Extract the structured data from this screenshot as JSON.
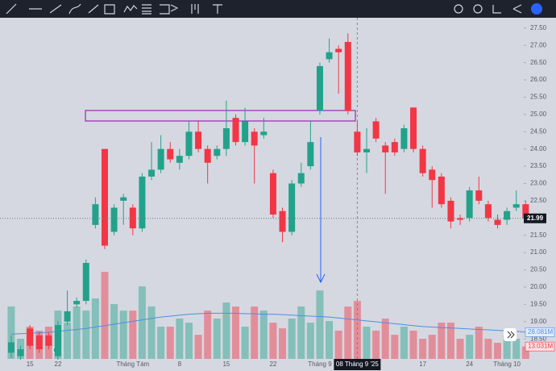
{
  "chart_data": {
    "type": "candlestick",
    "categories": [
      null,
      null,
      "15",
      null,
      null,
      "22",
      null,
      null,
      null,
      null,
      null,
      null,
      null,
      "Tháng Tám",
      null,
      null,
      null,
      null,
      "8",
      null,
      null,
      null,
      null,
      "15",
      null,
      null,
      null,
      null,
      "22",
      null,
      null,
      null,
      null,
      "Tháng 9",
      null,
      null,
      null,
      null,
      null,
      null,
      null,
      null,
      null,
      null,
      "17",
      null,
      null,
      null,
      null,
      "24",
      null,
      null,
      null,
      "Tháng 10",
      null,
      null
    ],
    "open": [
      18.1,
      18.0,
      18.8,
      18.6,
      18.6,
      18.0,
      19.0,
      19.5,
      19.6,
      21.8,
      24.0,
      21.6,
      22.5,
      22.3,
      21.7,
      23.2,
      23.4,
      24.0,
      23.6,
      23.8,
      24.5,
      24.0,
      23.8,
      24.0,
      24.9,
      24.2,
      24.5,
      24.4,
      23.3,
      22.2,
      21.6,
      23.0,
      23.5,
      25.1,
      26.6,
      26.9,
      27.1,
      24.5,
      23.9,
      24.8,
      24.1,
      24.2,
      24.0,
      25.2,
      24.0,
      23.4,
      23.2,
      22.5,
      22.0,
      22.0,
      22.8,
      22.4,
      21.95,
      21.95,
      22.3,
      22.4
    ],
    "high": [
      18.6,
      18.3,
      18.9,
      18.7,
      18.7,
      19.0,
      19.9,
      19.7,
      20.8,
      22.6,
      24.0,
      22.4,
      22.7,
      22.4,
      23.3,
      24.2,
      24.4,
      24.2,
      24.0,
      24.8,
      24.8,
      24.1,
      24.1,
      25.4,
      25.0,
      25.2,
      24.6,
      24.9,
      23.4,
      22.3,
      23.1,
      23.6,
      24.8,
      26.5,
      27.2,
      27.0,
      27.35,
      24.8,
      24.6,
      24.9,
      24.2,
      24.3,
      24.7,
      25.2,
      24.1,
      23.5,
      23.3,
      22.6,
      22.1,
      22.9,
      23.2,
      22.5,
      22.1,
      22.3,
      22.8,
      22.5
    ],
    "low": [
      17.95,
      17.9,
      18.2,
      18.1,
      18.2,
      17.9,
      18.9,
      19.4,
      19.5,
      21.7,
      21.1,
      21.5,
      21.8,
      21.5,
      21.6,
      23.1,
      23.3,
      23.6,
      23.4,
      23.7,
      23.9,
      23.0,
      23.7,
      23.8,
      24.1,
      24.1,
      23.0,
      24.3,
      22.0,
      21.3,
      21.5,
      22.9,
      23.4,
      25.0,
      26.5,
      25.6,
      25.0,
      23.8,
      23.3,
      24.2,
      22.7,
      23.8,
      23.9,
      23.9,
      23.2,
      22.3,
      22.3,
      21.7,
      21.8,
      21.9,
      22.4,
      21.9,
      21.7,
      21.8,
      22.2,
      21.9
    ],
    "close": [
      18.4,
      18.2,
      18.3,
      18.2,
      18.3,
      18.9,
      19.3,
      19.6,
      20.7,
      22.4,
      21.2,
      22.3,
      22.6,
      21.7,
      23.2,
      23.4,
      24.0,
      23.7,
      23.8,
      24.5,
      24.0,
      23.6,
      24.0,
      24.6,
      24.2,
      24.8,
      24.1,
      24.5,
      22.1,
      21.6,
      23.0,
      23.3,
      24.2,
      26.4,
      26.8,
      26.8,
      25.1,
      23.9,
      24.0,
      24.3,
      23.9,
      23.9,
      24.6,
      24.0,
      23.3,
      23.1,
      22.4,
      21.9,
      21.95,
      22.8,
      22.5,
      22.0,
      21.8,
      22.2,
      22.4,
      21.99
    ],
    "volume": [
      55.1,
      21.2,
      33.9,
      29.7,
      33.9,
      50.8,
      38.1,
      55.1,
      50.8,
      63.6,
      91.5,
      57.6,
      50.8,
      50.8,
      76.3,
      55.1,
      33.9,
      33.9,
      42.4,
      38.1,
      25.4,
      50.8,
      42.4,
      59.3,
      55.1,
      33.9,
      55.1,
      50.8,
      38.1,
      32.2,
      42.4,
      55.1,
      38.1,
      72.0,
      39.8,
      29.7,
      55.1,
      61.0,
      33.9,
      29.7,
      42.4,
      25.4,
      33.9,
      29.7,
      21.2,
      25.4,
      38.1,
      38.1,
      21.2,
      25.4,
      33.9,
      21.2,
      16.9,
      25.4,
      21.2,
      13.031
    ],
    "volume_ma": [
      26,
      26.5,
      27,
      27.5,
      28,
      29,
      30,
      31,
      32,
      33.5,
      35,
      36.5,
      38,
      39.5,
      41,
      42.5,
      44,
      45,
      46,
      47,
      47.5,
      48,
      48,
      48,
      48,
      47.5,
      47.5,
      47,
      47,
      46.5,
      46,
      45.5,
      45,
      44.5,
      44,
      43,
      42,
      41,
      40,
      39,
      38,
      37,
      36,
      35,
      34,
      33.5,
      33,
      32.5,
      32,
      31.5,
      31,
      30.5,
      30,
      29.5,
      29,
      28.081
    ],
    "last_price_label": "21.99",
    "last_volume_label": "13.031M",
    "last_volume_ma_label": "28.081M",
    "crosshair_label": "08 Tháng 9 '25",
    "up_color": "#22a28a",
    "down_color": "#f23645",
    "volume_ma_color": "#4f8fe0",
    "ylim": [
      17.92,
      27.8
    ],
    "yticks": [
      {
        "value": 27.5,
        "label": "27.50"
      },
      {
        "value": 27,
        "label": "27.00"
      },
      {
        "value": 26.5,
        "label": "26.50"
      },
      {
        "value": 26,
        "label": "26.00"
      },
      {
        "value": 25.5,
        "label": "25.50"
      },
      {
        "value": 25,
        "label": "25.00"
      },
      {
        "value": 24.5,
        "label": "24.50"
      },
      {
        "value": 24,
        "label": "24.00"
      },
      {
        "value": 23.5,
        "label": "23.50"
      },
      {
        "value": 23,
        "label": "23.00"
      },
      {
        "value": 22.5,
        "label": "22.50"
      },
      {
        "value": 22,
        "label": "22.00"
      },
      {
        "value": 21.5,
        "label": "21.50"
      },
      {
        "value": 21,
        "label": "21.00"
      },
      {
        "value": 20.5,
        "label": "20.50"
      },
      {
        "value": 20,
        "label": "20.00"
      },
      {
        "value": 19.5,
        "label": "19.50"
      },
      {
        "value": 19,
        "label": "19.00"
      },
      {
        "value": 18.5,
        "label": "18.50"
      }
    ],
    "vlim": [
      0,
      95
    ]
  }
}
